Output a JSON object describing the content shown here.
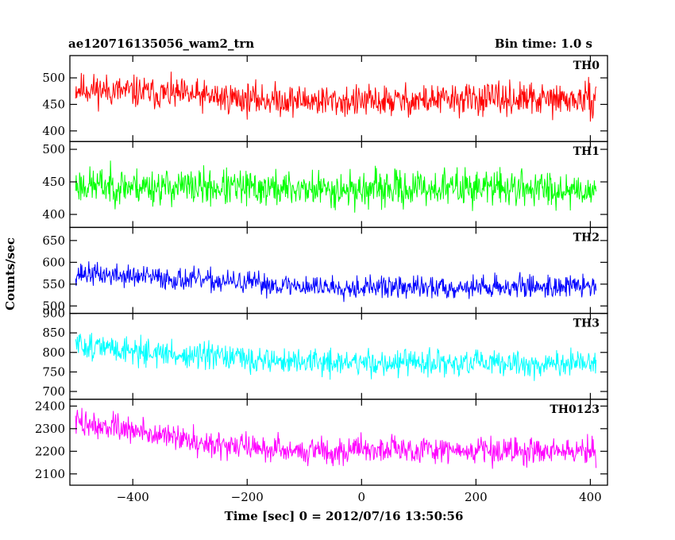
{
  "header": {
    "title": "ae120716135056_wam2_trn",
    "bin_time": "Bin time: 1.0 s"
  },
  "chart_data": {
    "type": "line",
    "title": "ae120716135056_wam2_trn",
    "subtitle": "Bin time: 1.0 s",
    "xlabel": "Time [sec] 0 = 2012/07/16 13:50:56",
    "ylabel": "Counts/sec",
    "xlim": [
      -510,
      430
    ],
    "data_x_range": [
      -500,
      410
    ],
    "x_ticks": [
      -400,
      -200,
      0,
      200,
      400
    ],
    "x_tick_labels": [
      "−400",
      "−200",
      "0",
      "200",
      "400"
    ],
    "grid": false,
    "panels": [
      {
        "label": "TH0",
        "color": "#ff0000",
        "ylim": [
          380,
          542
        ],
        "y_ticks": [
          400,
          450,
          500
        ],
        "y_tick_labels": [
          "400",
          "450",
          "500"
        ],
        "trend": [
          [
            -500,
            480
          ],
          [
            -350,
            470
          ],
          [
            -200,
            460
          ],
          [
            0,
            455
          ],
          [
            200,
            460
          ],
          [
            410,
            458
          ]
        ],
        "noise_amplitude": 28,
        "seed": 11
      },
      {
        "label": "TH1",
        "color": "#00ff00",
        "ylim": [
          380,
          512
        ],
        "y_ticks": [
          400,
          450,
          500
        ],
        "y_tick_labels": [
          "400",
          "450",
          "500"
        ],
        "trend": [
          [
            -500,
            445
          ],
          [
            -200,
            440
          ],
          [
            0,
            438
          ],
          [
            200,
            442
          ],
          [
            410,
            438
          ]
        ],
        "noise_amplitude": 26,
        "seed": 23
      },
      {
        "label": "TH2",
        "color": "#0000ff",
        "ylim": [
          483,
          680
        ],
        "y_ticks": [
          500,
          550,
          600,
          650
        ],
        "y_tick_labels": [
          "500",
          "550",
          "600",
          "650"
        ],
        "trend": [
          [
            -500,
            575
          ],
          [
            -300,
            560
          ],
          [
            -100,
            545
          ],
          [
            100,
            542
          ],
          [
            300,
            545
          ],
          [
            410,
            545
          ]
        ],
        "noise_amplitude": 24,
        "seed": 37
      },
      {
        "label": "TH3",
        "color": "#00ffff",
        "ylim": [
          680,
          900
        ],
        "y_ticks": [
          700,
          750,
          800,
          850,
          900
        ],
        "y_tick_labels": [
          "700",
          "750",
          "800",
          "850",
          "900"
        ],
        "trend": [
          [
            -500,
            820
          ],
          [
            -300,
            790
          ],
          [
            -100,
            775
          ],
          [
            100,
            772
          ],
          [
            300,
            770
          ],
          [
            410,
            770
          ]
        ],
        "noise_amplitude": 32,
        "seed": 51
      },
      {
        "label": "TH0123",
        "color": "#ff00ff",
        "ylim": [
          2050,
          2430
        ],
        "y_ticks": [
          2100,
          2200,
          2300,
          2400
        ],
        "y_tick_labels": [
          "2100",
          "2200",
          "2300",
          "2400"
        ],
        "trend": [
          [
            -500,
            2330
          ],
          [
            -400,
            2290
          ],
          [
            -250,
            2230
          ],
          [
            -100,
            2200
          ],
          [
            0,
            2210
          ],
          [
            200,
            2205
          ],
          [
            410,
            2200
          ]
        ],
        "noise_amplitude": 55,
        "seed": 73
      }
    ]
  }
}
